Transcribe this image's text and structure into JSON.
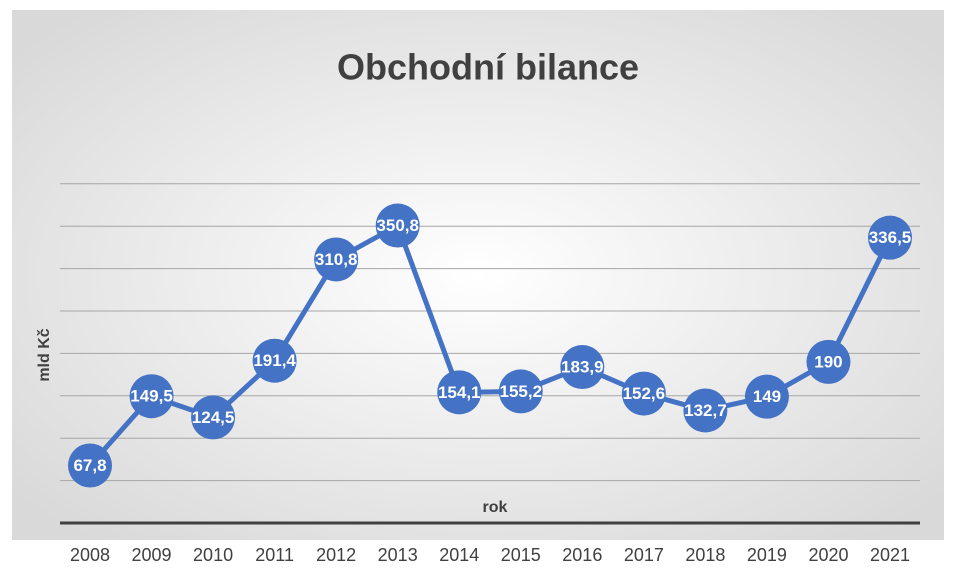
{
  "chart_data": {
    "type": "line",
    "title": "Obchodní bilance",
    "x_label": "rok",
    "y_label": "mld Kč",
    "categories": [
      "2008",
      "2009",
      "2010",
      "2011",
      "2012",
      "2013",
      "2014",
      "2015",
      "2016",
      "2017",
      "2018",
      "2019",
      "2020",
      "2021"
    ],
    "values": [
      67.8,
      149.5,
      124.5,
      191.4,
      310.8,
      350.8,
      154.1,
      155.2,
      183.9,
      152.6,
      132.7,
      149,
      190,
      336.5
    ],
    "value_labels": [
      "67,8",
      "149,5",
      "124,5",
      "191,4",
      "310,8",
      "350,8",
      "154,1",
      "155,2",
      "183,9",
      "152,6",
      "132,7",
      "149",
      "190",
      "336,5"
    ],
    "color": "#4472c4",
    "ylim": [
      0,
      400
    ],
    "yticks": [
      50,
      100,
      150,
      200,
      250,
      300,
      350,
      400
    ],
    "grid": true
  }
}
